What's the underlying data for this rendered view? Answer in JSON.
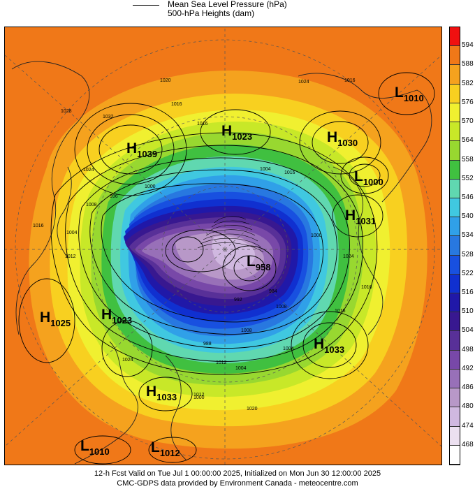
{
  "legend": {
    "mslp_label": "Mean Sea Level Pressure (hPa)",
    "height_label": "500-hPa Heights (dam)"
  },
  "colorbar": {
    "labels": [
      "594",
      "588",
      "582",
      "576",
      "570",
      "564",
      "558",
      "552",
      "546",
      "540",
      "534",
      "528",
      "522",
      "516",
      "510",
      "504",
      "498",
      "492",
      "486",
      "480",
      "474",
      "468"
    ],
    "colors": [
      "#f01010",
      "#f07818",
      "#f5a21e",
      "#f8d020",
      "#f0f030",
      "#c8e828",
      "#98d830",
      "#40c040",
      "#60d8b0",
      "#40c8e0",
      "#30a0e8",
      "#2878e0",
      "#1850e0",
      "#1030d0",
      "#2018a8",
      "#381890",
      "#583098",
      "#7848a8",
      "#9870b8",
      "#b898c8",
      "#d0b8e0",
      "#ece0f0",
      "#ffffff"
    ]
  },
  "map": {
    "pressure_centers": [
      {
        "type": "L",
        "value": "1010"
      },
      {
        "type": "H",
        "value": "1023"
      },
      {
        "type": "H",
        "value": "1030"
      },
      {
        "type": "H",
        "value": "1039"
      },
      {
        "type": "L",
        "value": "1000"
      },
      {
        "type": "H",
        "value": "1031"
      },
      {
        "type": "L",
        "value": "958"
      },
      {
        "type": "H",
        "value": "1025"
      },
      {
        "type": "H",
        "value": "1023"
      },
      {
        "type": "H",
        "value": "1033"
      },
      {
        "type": "H",
        "value": "1033"
      },
      {
        "type": "L",
        "value": "1010"
      },
      {
        "type": "L",
        "value": "1012"
      }
    ],
    "isobar_labels": [
      "1020",
      "1016",
      "1016",
      "1028",
      "1032",
      "1024",
      "1016",
      "1004",
      "996",
      "1008",
      "1000",
      "1012",
      "1004",
      "1016",
      "1016",
      "1024",
      "1020",
      "1000",
      "1012",
      "1004",
      "1004",
      "1008",
      "1000",
      "984",
      "992",
      "988",
      "1016",
      "1008",
      "1024",
      "1012",
      "1016",
      "1024"
    ]
  },
  "footer": {
    "line1": "12-h Fcst Valid on Tue Jul  1 00:00:00 2025, Initialized on Mon Jun 30 12:00:00 2025",
    "line2": "CMC-GDPS data provided by Environment Canada - meteocentre.com"
  }
}
